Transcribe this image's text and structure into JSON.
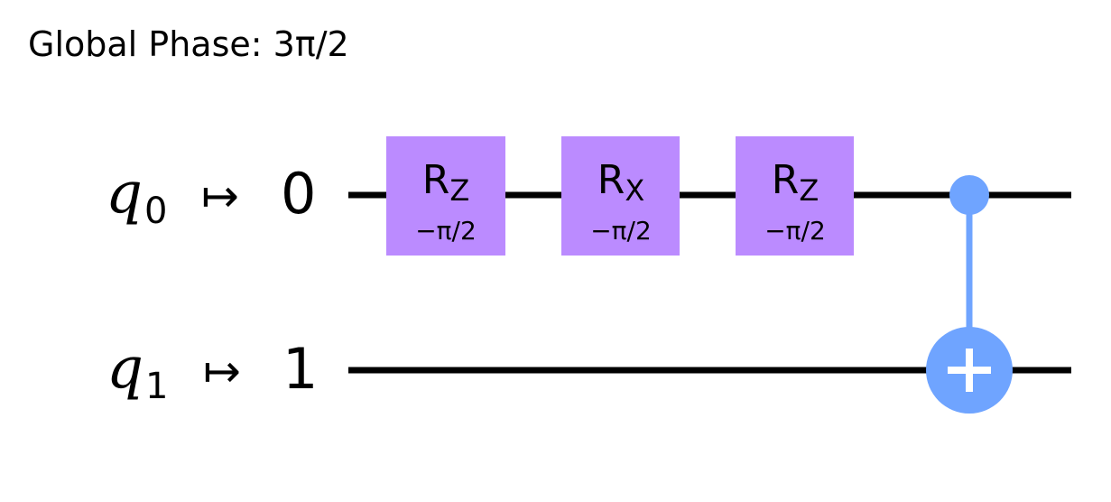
{
  "global_phase": {
    "label": "Global Phase: 3π/2"
  },
  "qubits": [
    {
      "symbol": "q",
      "index": "0",
      "arrow": "↦",
      "maps_to": "0"
    },
    {
      "symbol": "q",
      "index": "1",
      "arrow": "↦",
      "maps_to": "1"
    }
  ],
  "gates": [
    {
      "name": "R",
      "sub": "Z",
      "param": "−π/2",
      "qubit": 0
    },
    {
      "name": "R",
      "sub": "X",
      "param": "−π/2",
      "qubit": 0
    },
    {
      "name": "R",
      "sub": "Z",
      "param": "−π/2",
      "qubit": 0
    }
  ],
  "cx": {
    "control": 0,
    "target": 1
  },
  "colors": {
    "wire": "#000000",
    "gate_fill": "#bb8bff",
    "cx_color": "#6fa4ff",
    "cx_symbol": "#ffffff"
  }
}
